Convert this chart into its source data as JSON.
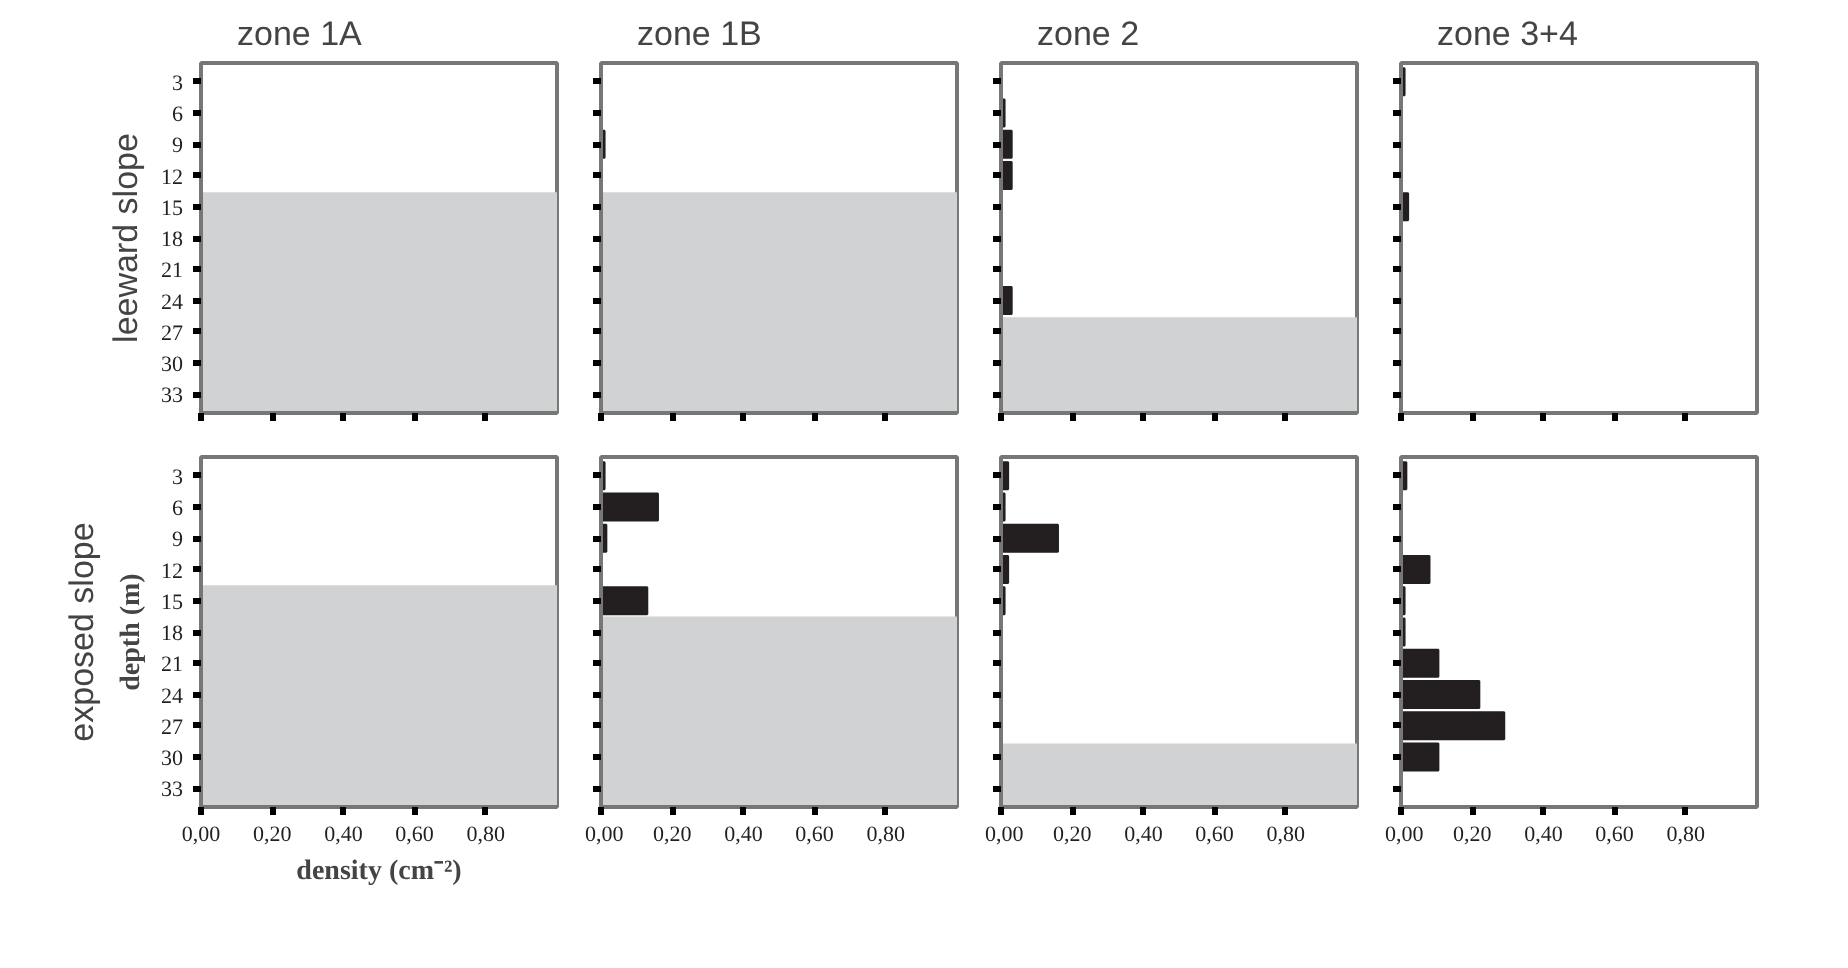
{
  "chart_data": [
    {
      "type": "bar",
      "orientation": "horizontal",
      "title": "zone 1A",
      "annotations": [
        "leeward slope"
      ],
      "color": "#231f20",
      "xlim": [
        0,
        1.0
      ],
      "xticks": [
        {
          "value": 0,
          "label": null
        },
        {
          "value": 0.2,
          "label": null
        },
        {
          "value": 0.4,
          "label": null
        },
        {
          "value": 0.6,
          "label": null
        },
        {
          "value": 0.8,
          "label": null
        }
      ],
      "ylim": [
        34.8,
        1.2
      ],
      "yticks": [
        3,
        6,
        9,
        12,
        15,
        18,
        21,
        24,
        27,
        30,
        33
      ],
      "bands": [
        {
          "axis": "y",
          "from": 13.6,
          "to": 34.8,
          "color": "#d1d2d4"
        }
      ],
      "tick_labels": "y"
    },
    {
      "type": "bar",
      "orientation": "horizontal",
      "title": "zone 1B",
      "x": [
        9
      ],
      "values": [
        0.01
      ],
      "color": "#231f20",
      "xlim": [
        0,
        1.0
      ],
      "xticks": [
        {
          "value": 0,
          "label": null
        },
        {
          "value": 0.2,
          "label": null
        },
        {
          "value": 0.4,
          "label": null
        },
        {
          "value": 0.6,
          "label": null
        },
        {
          "value": 0.8,
          "label": null
        }
      ],
      "ylim": [
        34.8,
        1.2
      ],
      "yticks": [
        3,
        6,
        9,
        12,
        15,
        18,
        21,
        24,
        27,
        30,
        33
      ],
      "bands": [
        {
          "axis": "y",
          "from": 13.6,
          "to": 34.8,
          "color": "#d1d2d4"
        }
      ],
      "tick_labels": false
    },
    {
      "type": "bar",
      "orientation": "horizontal",
      "title": "zone 2",
      "x": [
        6,
        9,
        12,
        24
      ],
      "values": [
        0.01,
        0.03,
        0.03,
        0.03
      ],
      "color": "#231f20",
      "xlim": [
        0,
        1.0
      ],
      "xticks": [
        {
          "value": 0,
          "label": null
        },
        {
          "value": 0.2,
          "label": null
        },
        {
          "value": 0.4,
          "label": null
        },
        {
          "value": 0.6,
          "label": null
        },
        {
          "value": 0.8,
          "label": null
        }
      ],
      "ylim": [
        34.8,
        1.2
      ],
      "yticks": [
        3,
        6,
        9,
        12,
        15,
        18,
        21,
        24,
        27,
        30,
        33
      ],
      "bands": [
        {
          "axis": "y",
          "from": 25.6,
          "to": 34.8,
          "color": "#d1d2d4"
        }
      ],
      "tick_labels": false
    },
    {
      "type": "bar",
      "orientation": "horizontal",
      "title": "zone 3+4",
      "x": [
        3,
        15
      ],
      "values": [
        0.01,
        0.02
      ],
      "color": "#231f20",
      "xlim": [
        0,
        1.0
      ],
      "xticks": [
        {
          "value": 0,
          "label": null
        },
        {
          "value": 0.2,
          "label": null
        },
        {
          "value": 0.4,
          "label": null
        },
        {
          "value": 0.6,
          "label": null
        },
        {
          "value": 0.8,
          "label": null
        }
      ],
      "ylim": [
        34.8,
        1.2
      ],
      "yticks": [
        3,
        6,
        9,
        12,
        15,
        18,
        21,
        24,
        27,
        30,
        33
      ],
      "tick_labels": false
    },
    {
      "type": "bar",
      "orientation": "horizontal",
      "annotations": [
        "exposed slope"
      ],
      "xlabel": "density (cm⁻²)",
      "ylabel": "depth (m)",
      "color": "#231f20",
      "xlim": [
        0,
        1.0
      ],
      "xticks": [
        {
          "value": 0,
          "label": "0,00"
        },
        {
          "value": 0.2,
          "label": "0,20"
        },
        {
          "value": 0.4,
          "label": "0,40"
        },
        {
          "value": 0.6,
          "label": "0,60"
        },
        {
          "value": 0.8,
          "label": "0,80"
        }
      ],
      "ylim": [
        34.8,
        1.2
      ],
      "yticks": [
        3,
        6,
        9,
        12,
        15,
        18,
        21,
        24,
        27,
        30,
        33
      ],
      "bands": [
        {
          "axis": "y",
          "from": 13.5,
          "to": 34.8,
          "color": "#d1d2d4"
        }
      ]
    },
    {
      "type": "bar",
      "orientation": "horizontal",
      "x": [
        3,
        6,
        9,
        15
      ],
      "values": [
        0.01,
        0.16,
        0.015,
        0.13
      ],
      "color": "#231f20",
      "xlim": [
        0,
        1.0
      ],
      "xticks": [
        {
          "value": 0,
          "label": "0,00"
        },
        {
          "value": 0.2,
          "label": "0,20"
        },
        {
          "value": 0.4,
          "label": "0,40"
        },
        {
          "value": 0.6,
          "label": "0,60"
        },
        {
          "value": 0.8,
          "label": "0,80"
        }
      ],
      "ylim": [
        34.8,
        1.2
      ],
      "yticks": [
        3,
        6,
        9,
        12,
        15,
        18,
        21,
        24,
        27,
        30,
        33
      ],
      "bands": [
        {
          "axis": "y",
          "from": 16.5,
          "to": 34.8,
          "color": "#d1d2d4"
        }
      ],
      "tick_labels": "x"
    },
    {
      "type": "bar",
      "orientation": "horizontal",
      "x": [
        3,
        6,
        9,
        12,
        15
      ],
      "values": [
        0.02,
        0.01,
        0.16,
        0.02,
        0.01
      ],
      "color": "#231f20",
      "xlim": [
        0,
        1.0
      ],
      "xticks": [
        {
          "value": 0,
          "label": "0,00"
        },
        {
          "value": 0.2,
          "label": "0,20"
        },
        {
          "value": 0.4,
          "label": "0,40"
        },
        {
          "value": 0.6,
          "label": "0,60"
        },
        {
          "value": 0.8,
          "label": "0,80"
        }
      ],
      "ylim": [
        34.8,
        1.2
      ],
      "yticks": [
        3,
        6,
        9,
        12,
        15,
        18,
        21,
        24,
        27,
        30,
        33
      ],
      "bands": [
        {
          "axis": "y",
          "from": 28.7,
          "to": 34.8,
          "color": "#d1d2d4"
        }
      ],
      "tick_labels": "x"
    },
    {
      "type": "bar",
      "orientation": "horizontal",
      "x": [
        3,
        12,
        15,
        18,
        21,
        24,
        27,
        30
      ],
      "values": [
        0.015,
        0.08,
        0.01,
        0.01,
        0.105,
        0.22,
        0.29,
        0.105
      ],
      "color": "#231f20",
      "xlim": [
        0,
        1.0
      ],
      "xticks": [
        {
          "value": 0,
          "label": "0,00"
        },
        {
          "value": 0.2,
          "label": "0,20"
        },
        {
          "value": 0.4,
          "label": "0,40"
        },
        {
          "value": 0.6,
          "label": "0,60"
        },
        {
          "value": 0.8,
          "label": "0,80"
        }
      ],
      "ylim": [
        34.8,
        1.2
      ],
      "yticks": [
        3,
        6,
        9,
        12,
        15,
        18,
        21,
        24,
        27,
        30,
        33
      ],
      "tick_labels": "x"
    }
  ]
}
